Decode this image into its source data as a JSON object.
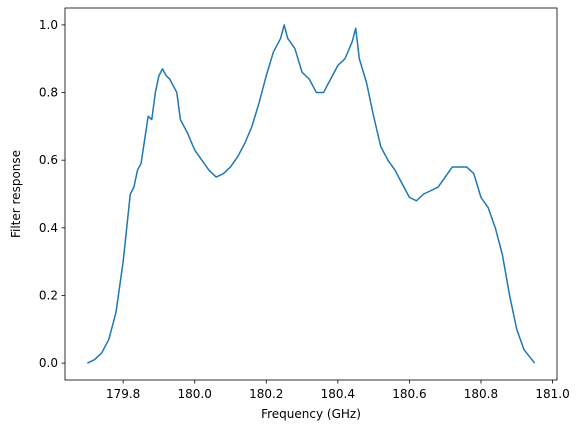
{
  "chart_data": {
    "type": "line",
    "xlabel": "Frequency (GHz)",
    "ylabel": "Filter response",
    "x": [
      179.7,
      179.72,
      179.74,
      179.76,
      179.78,
      179.8,
      179.81,
      179.82,
      179.83,
      179.84,
      179.85,
      179.86,
      179.87,
      179.88,
      179.89,
      179.9,
      179.91,
      179.92,
      179.93,
      179.94,
      179.95,
      179.96,
      179.98,
      180.0,
      180.02,
      180.04,
      180.06,
      180.08,
      180.1,
      180.12,
      180.14,
      180.16,
      180.18,
      180.2,
      180.22,
      180.24,
      180.25,
      180.26,
      180.28,
      180.3,
      180.32,
      180.34,
      180.36,
      180.38,
      180.4,
      180.42,
      180.44,
      180.45,
      180.46,
      180.48,
      180.5,
      180.52,
      180.54,
      180.56,
      180.58,
      180.6,
      180.62,
      180.64,
      180.66,
      180.68,
      180.7,
      180.72,
      180.74,
      180.76,
      180.78,
      180.8,
      180.82,
      180.84,
      180.86,
      180.88,
      180.9,
      180.92,
      180.95
    ],
    "series": [
      {
        "name": "Filter response",
        "color": "#1f77b4",
        "values": [
          0.0,
          0.01,
          0.03,
          0.07,
          0.15,
          0.3,
          0.4,
          0.5,
          0.52,
          0.57,
          0.59,
          0.66,
          0.73,
          0.72,
          0.8,
          0.85,
          0.87,
          0.85,
          0.84,
          0.82,
          0.8,
          0.72,
          0.68,
          0.63,
          0.6,
          0.57,
          0.55,
          0.56,
          0.58,
          0.61,
          0.65,
          0.7,
          0.77,
          0.85,
          0.92,
          0.96,
          1.0,
          0.96,
          0.93,
          0.86,
          0.84,
          0.8,
          0.8,
          0.84,
          0.88,
          0.9,
          0.95,
          0.99,
          0.9,
          0.83,
          0.73,
          0.64,
          0.6,
          0.57,
          0.53,
          0.49,
          0.48,
          0.5,
          0.51,
          0.52,
          0.55,
          0.58,
          0.58,
          0.58,
          0.56,
          0.49,
          0.46,
          0.4,
          0.32,
          0.2,
          0.1,
          0.04,
          0.0
        ]
      }
    ],
    "xlim": [
      179.6375,
      181.0125
    ],
    "xticks": [
      179.8,
      {
        "value": 180.0,
        "label": "180.0"
      },
      180.2,
      180.4,
      180.6,
      180.8,
      {
        "value": 181.0,
        "label": "181.0"
      }
    ],
    "ylim": [
      -0.05,
      1.05
    ],
    "yticks": [
      {
        "value": 0,
        "label": "0.0"
      },
      0.2,
      0.4,
      0.6,
      0.8,
      {
        "value": 1,
        "label": "1.0"
      }
    ],
    "grid": false
  }
}
